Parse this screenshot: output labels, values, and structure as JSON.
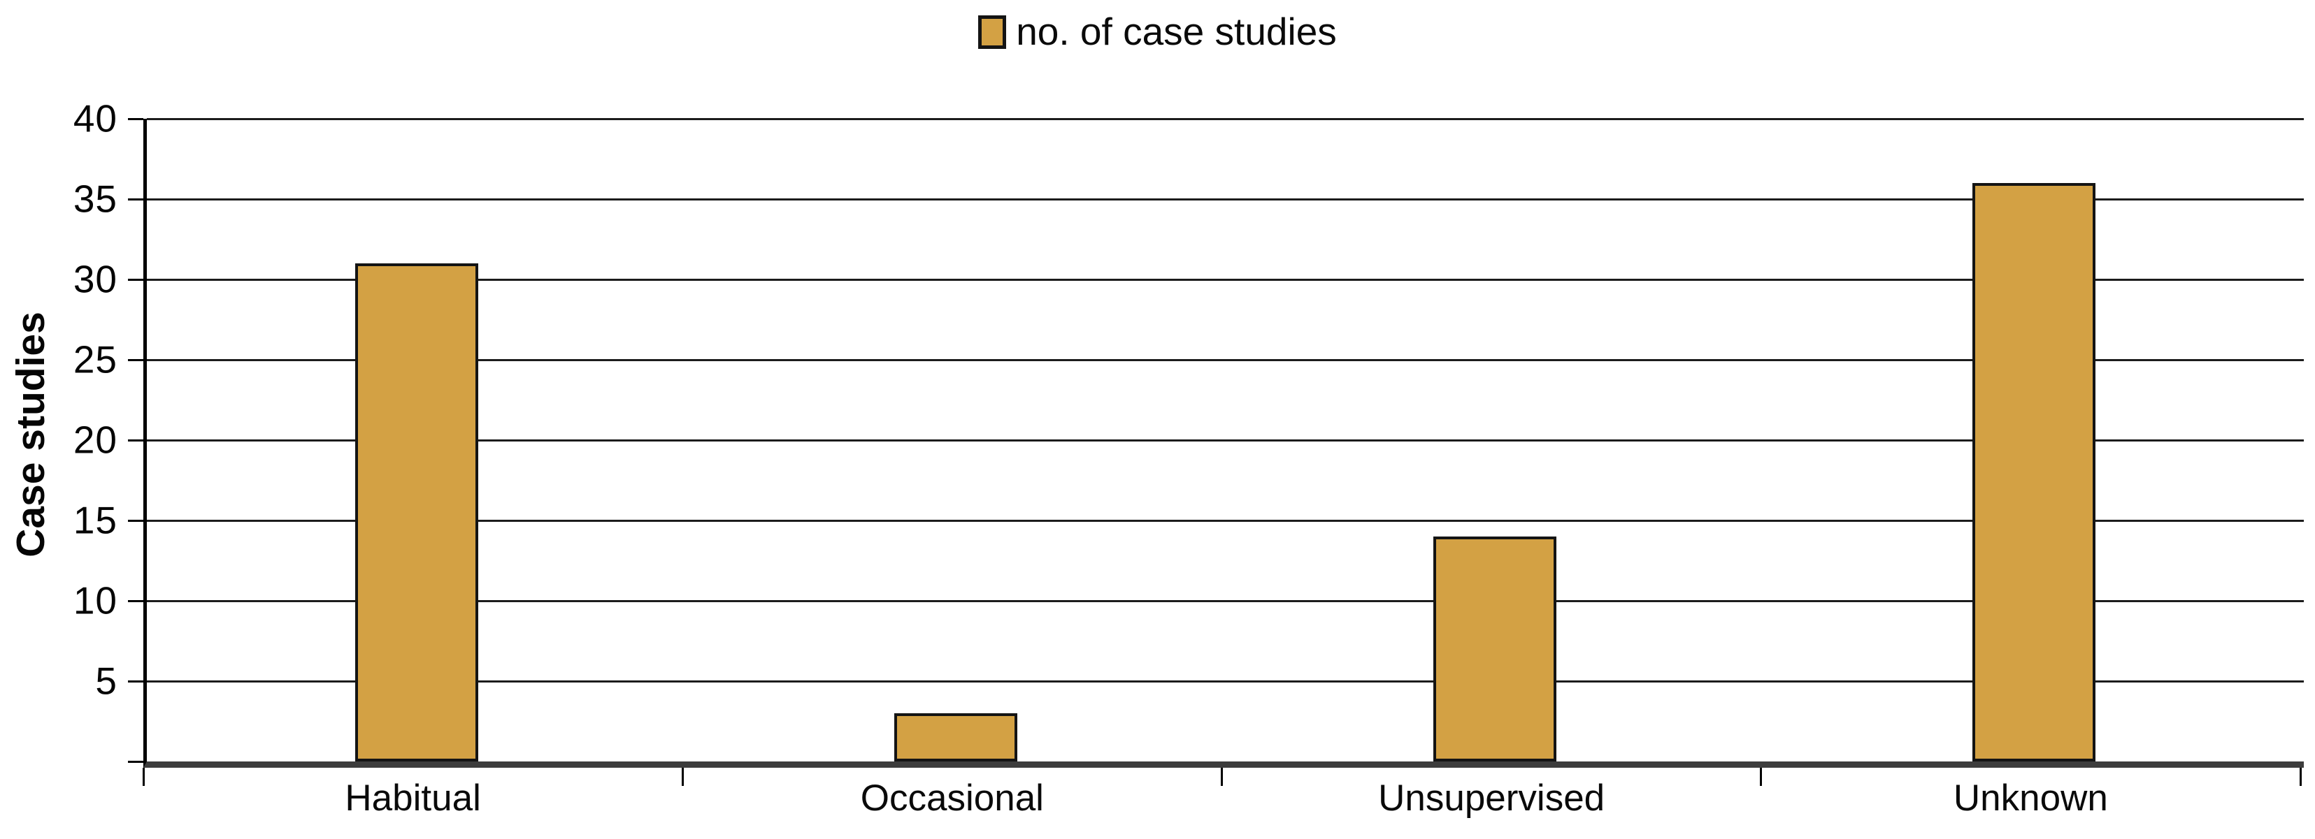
{
  "chart_data": {
    "type": "bar",
    "title": "",
    "legend": [
      {
        "label": "no. of case studies",
        "color": "#D3A144"
      }
    ],
    "legend_position": "top-center",
    "categories": [
      "Habitual",
      "Occasional",
      "Unsupervised",
      "Unknown"
    ],
    "series": [
      {
        "name": "no. of case studies",
        "values": [
          31,
          3,
          14,
          36
        ]
      }
    ],
    "values": [
      31,
      3,
      14,
      36
    ],
    "xlabel": "",
    "ylabel": "Case studies",
    "ylim": [
      0,
      40
    ],
    "yticks": [
      5,
      10,
      15,
      20,
      25,
      30,
      35,
      40
    ],
    "grid": "horizontal",
    "colors": {
      "bar_fill": "#D3A144",
      "bar_border": "#141414",
      "gridline": "#1c1c1c",
      "axis": "#000000",
      "baseline": "#3d3d3d",
      "text": "#0a0a0a",
      "background": "#ffffff"
    }
  }
}
